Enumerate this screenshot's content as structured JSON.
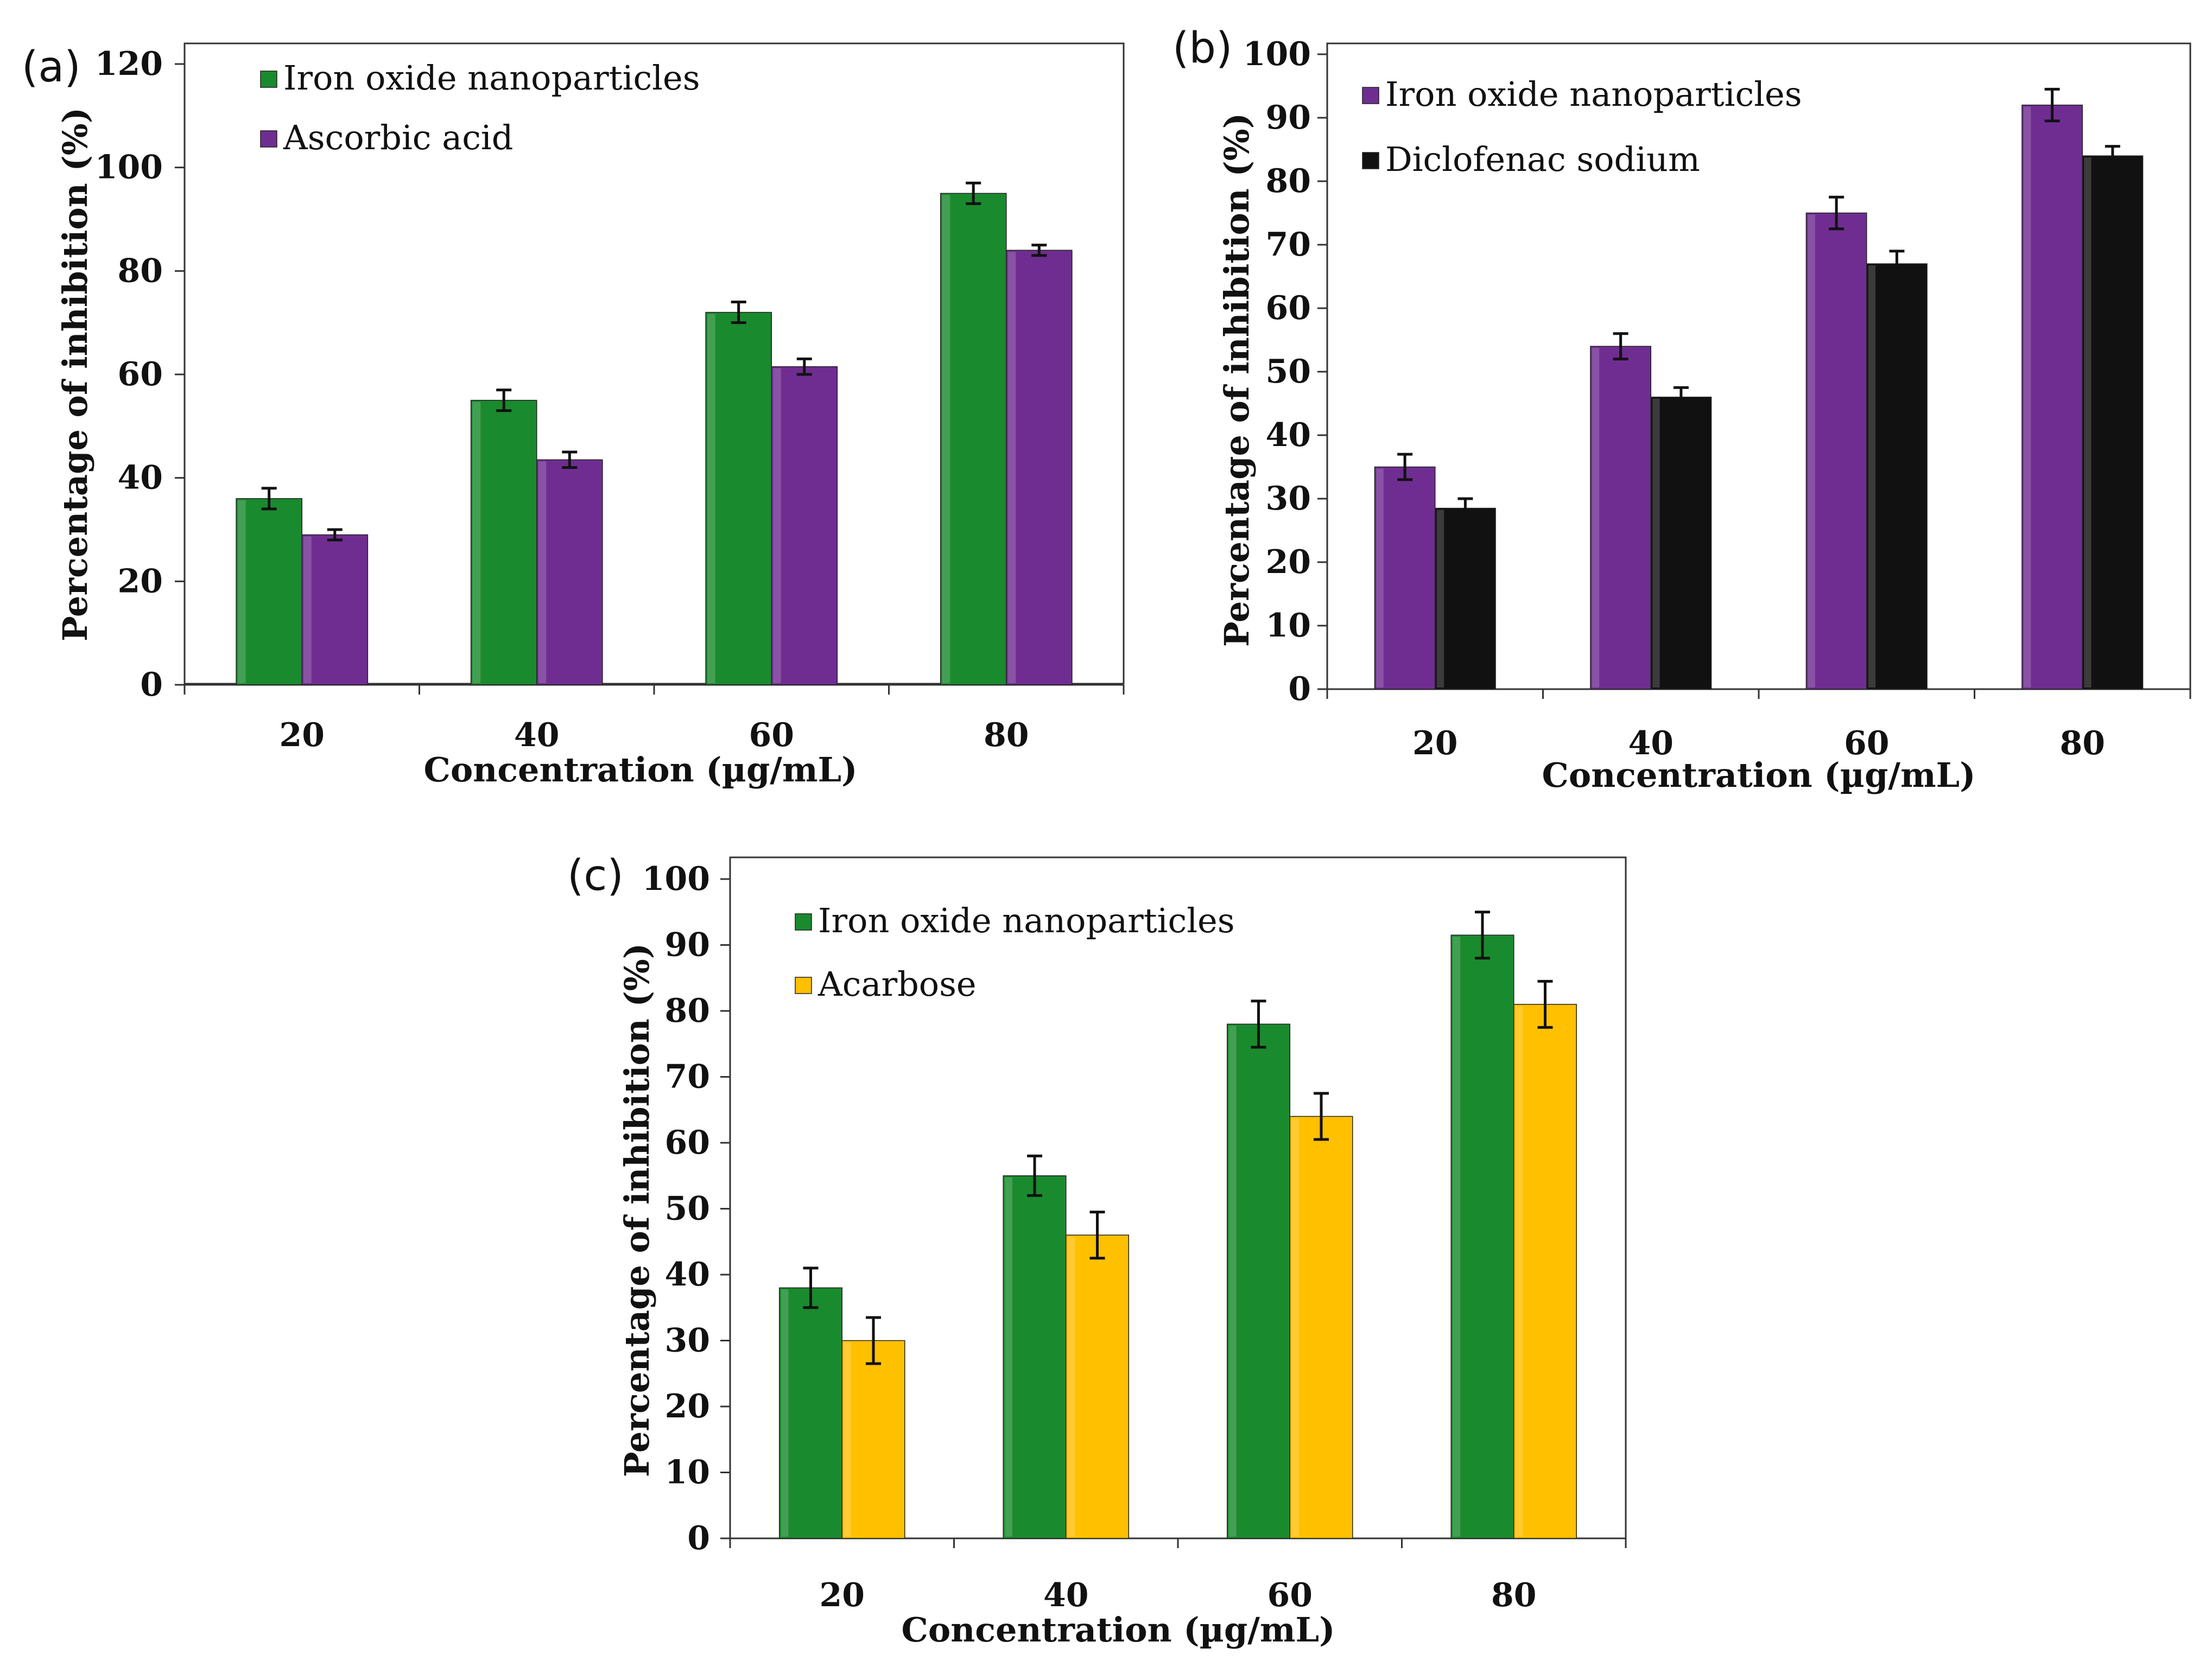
{
  "chart_data": [
    {
      "panel": "(a)",
      "type": "bar",
      "categories": [
        "20",
        "40",
        "60",
        "80"
      ],
      "series": [
        {
          "name": "Iron oxide nanoparticles",
          "color": "#1a8a2e",
          "values": [
            36,
            55,
            72,
            95
          ],
          "errors": [
            2,
            2,
            2,
            2
          ]
        },
        {
          "name": "Ascorbic acid",
          "color": "#6f2d91",
          "values": [
            29,
            43.5,
            61.5,
            84
          ],
          "errors": [
            1,
            1.5,
            1.5,
            1
          ]
        }
      ],
      "xlabel": "Concentration  (µg/mL)",
      "ylabel": "Percentage of inhibition  (%)",
      "ylim": [
        0,
        120
      ],
      "yticks": [
        0,
        20,
        40,
        60,
        80,
        100,
        120
      ],
      "legend": "top-left",
      "grid": false
    },
    {
      "panel": "(b)",
      "type": "bar",
      "categories": [
        "20",
        "40",
        "60",
        "80"
      ],
      "series": [
        {
          "name": "Iron oxide nanoparticles",
          "color": "#6f2d91",
          "values": [
            35,
            54,
            75,
            92
          ],
          "errors": [
            2,
            2,
            2.5,
            2.5
          ]
        },
        {
          "name": "Diclofenac sodium",
          "color": "#111111",
          "values": [
            28.5,
            46,
            67,
            84
          ],
          "errors": [
            1.5,
            1.5,
            2,
            1.5
          ]
        }
      ],
      "xlabel": "Concentration  (µg/mL)",
      "ylabel": "Percentage of inhibition  (%)",
      "ylim": [
        0,
        100
      ],
      "yticks": [
        0,
        10,
        20,
        30,
        40,
        50,
        60,
        70,
        80,
        90,
        100
      ],
      "legend": "top-left",
      "grid": false
    },
    {
      "panel": "(c)",
      "type": "bar",
      "categories": [
        "20",
        "40",
        "60",
        "80"
      ],
      "series": [
        {
          "name": "Iron oxide nanoparticles",
          "color": "#1a8a2e",
          "values": [
            38,
            55,
            78,
            91.5
          ],
          "errors": [
            3,
            3,
            3.5,
            3.5
          ]
        },
        {
          "name": "Acarbose",
          "color": "#ffc000",
          "values": [
            30,
            46,
            64,
            81
          ],
          "errors": [
            3.5,
            3.5,
            3.5,
            3.5
          ]
        }
      ],
      "xlabel": "Concentration  (µg/mL)",
      "ylabel": "Percentage of inhibition  (%)",
      "ylim": [
        0,
        100
      ],
      "yticks": [
        0,
        10,
        20,
        30,
        40,
        50,
        60,
        70,
        80,
        90,
        100
      ],
      "legend": "top-left",
      "grid": false
    }
  ]
}
